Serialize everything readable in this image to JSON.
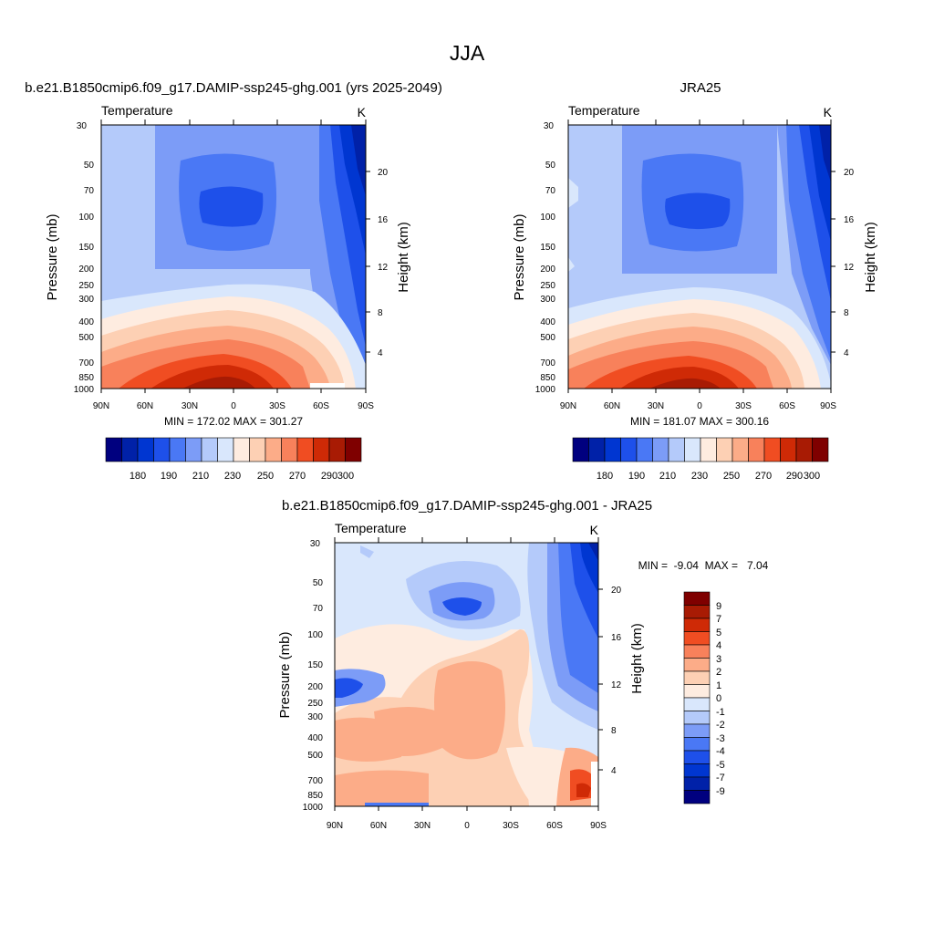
{
  "figure": {
    "title": "JJA"
  },
  "chart_data": [
    {
      "type": "heatmap",
      "title": "b.e21.B1850cmip6.f09_g17.DAMIP-ssp245-ghg.001 (yrs 2025-2049)",
      "subtitle_left": "Temperature",
      "units": "K",
      "xlabel": "",
      "ylabel": "Pressure (mb)",
      "y2label": "Height (km)",
      "x_ticks": [
        "90N",
        "60N",
        "30N",
        "0",
        "30S",
        "60S",
        "90S"
      ],
      "y_ticks": [
        "30",
        "50",
        "70",
        "100",
        "150",
        "200",
        "250",
        "300",
        "400",
        "500",
        "700",
        "850",
        "1000"
      ],
      "y2_ticks": [
        "20",
        "16",
        "12",
        "8",
        "4"
      ],
      "stats": "MIN = 172.02  MAX = 301.27",
      "min": 172.02,
      "max": 301.27,
      "colorbar_labels": [
        "180",
        "190",
        "210",
        "230",
        "250",
        "270",
        "290",
        "300"
      ]
    },
    {
      "type": "heatmap",
      "title": "JRA25",
      "subtitle_left": "Temperature",
      "units": "K",
      "xlabel": "",
      "ylabel": "Pressure (mb)",
      "y2label": "Height (km)",
      "x_ticks": [
        "90N",
        "60N",
        "30N",
        "0",
        "30S",
        "60S",
        "90S"
      ],
      "y_ticks": [
        "30",
        "50",
        "70",
        "100",
        "150",
        "200",
        "250",
        "300",
        "400",
        "500",
        "700",
        "850",
        "1000"
      ],
      "y2_ticks": [
        "20",
        "16",
        "12",
        "8",
        "4"
      ],
      "stats": "MIN = 181.07  MAX = 300.16",
      "min": 181.07,
      "max": 300.16,
      "colorbar_labels": [
        "180",
        "190",
        "210",
        "230",
        "250",
        "270",
        "290",
        "300"
      ]
    },
    {
      "type": "heatmap",
      "title": "b.e21.B1850cmip6.f09_g17.DAMIP-ssp245-ghg.001 - JRA25",
      "subtitle_left": "Temperature",
      "units": "K",
      "xlabel": "",
      "ylabel": "Pressure (mb)",
      "y2label": "Height (km)",
      "x_ticks": [
        "90N",
        "60N",
        "30N",
        "0",
        "30S",
        "60S",
        "90S"
      ],
      "y_ticks": [
        "30",
        "50",
        "70",
        "100",
        "150",
        "200",
        "250",
        "300",
        "400",
        "500",
        "700",
        "850",
        "1000"
      ],
      "y2_ticks": [
        "20",
        "16",
        "12",
        "8",
        "4"
      ],
      "stats": "MIN =  -9.04  MAX =   7.04",
      "min": -9.04,
      "max": 7.04,
      "colorbar_labels": [
        "9",
        "7",
        "5",
        "4",
        "3",
        "2",
        "1",
        "0",
        "-1",
        "-2",
        "-3",
        "-4",
        "-5",
        "-7",
        "-9"
      ]
    }
  ],
  "palette": [
    "#00007f",
    "#0021a8",
    "#0036d1",
    "#1e50ea",
    "#4a78f5",
    "#7c9cf7",
    "#b4cafa",
    "#d9e7fc",
    "#feece0",
    "#fdd0b4",
    "#fcac88",
    "#f8815b",
    "#f04d22",
    "#cf2a06",
    "#a81b04",
    "#7f0000"
  ]
}
